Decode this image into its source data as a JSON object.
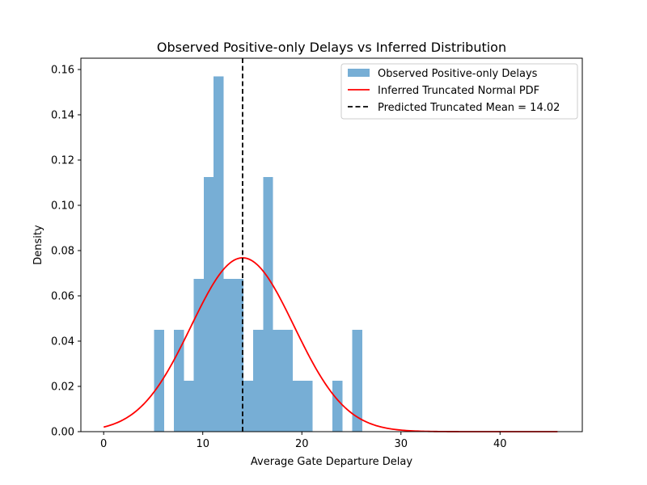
{
  "chart_data": {
    "type": "bar",
    "title": "Observed Positive-only Delays vs Inferred Distribution",
    "xlabel": "Average Gate Departure Delay",
    "ylabel": "Density",
    "xlim": [
      -2.3,
      48.3
    ],
    "ylim": [
      0,
      0.165
    ],
    "x_ticks": [
      0,
      10,
      20,
      30,
      40
    ],
    "y_ticks": [
      0.0,
      0.02,
      0.04,
      0.06,
      0.08,
      0.1,
      0.12,
      0.14,
      0.16
    ],
    "x_tick_labels": [
      "0",
      "10",
      "20",
      "30",
      "40"
    ],
    "y_tick_labels": [
      "0.00",
      "0.02",
      "0.04",
      "0.06",
      "0.08",
      "0.10",
      "0.12",
      "0.14",
      "0.16"
    ],
    "grid": false,
    "legend_position": "top-right",
    "histogram": {
      "name": "Observed Positive-only Delays",
      "color": "#77aed5",
      "bin_width": 1.0,
      "bin_starts": [
        5.1,
        7.1,
        8.1,
        9.1,
        10.1,
        11.1,
        12.1,
        13.1,
        14.1,
        15.1,
        16.1,
        17.1,
        18.1,
        19.1,
        20.1,
        21.1,
        23.1,
        25.1
      ],
      "values": [
        0.045,
        0.045,
        0.0225,
        0.0675,
        0.1125,
        0.157,
        0.0675,
        0.0675,
        0.0225,
        0.045,
        0.1125,
        0.045,
        0.045,
        0.0225,
        0.0225,
        0.0,
        0.0225,
        0.045
      ]
    },
    "pdf_curve": {
      "name": "Inferred Truncated Normal PDF",
      "color": "#ff0000",
      "x_start": 0,
      "x_end": 45.8,
      "peak": 0.0768,
      "mean": 14.02,
      "std": 5.2,
      "value_at_zero": 0.0022
    },
    "mean_line": {
      "name": "Predicted Truncated Mean = 14.02",
      "value": 14.02,
      "color": "#000000"
    }
  }
}
